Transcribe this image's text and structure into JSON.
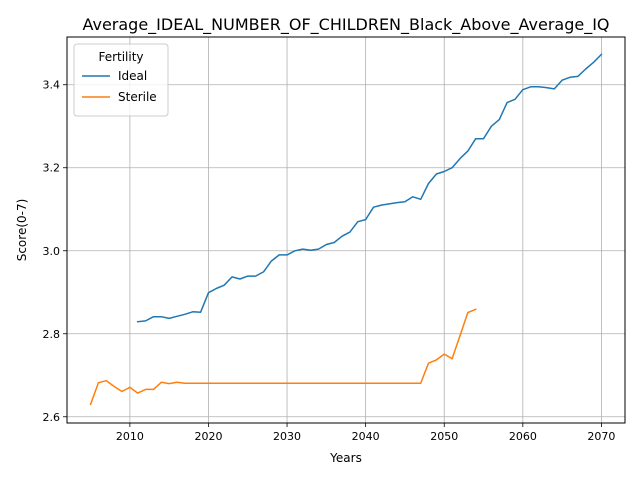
{
  "chart_data": {
    "type": "line",
    "title": "Average_IDEAL_NUMBER_OF_CHILDREN_Black_Above_Average_IQ",
    "xlabel": "Years",
    "ylabel": "Score(0-7)",
    "xlim": [
      2002,
      2073
    ],
    "ylim": [
      2.585,
      3.515
    ],
    "xticks": [
      2010,
      2020,
      2030,
      2040,
      2050,
      2060,
      2070
    ],
    "yticks": [
      2.6,
      2.8,
      3.0,
      3.2,
      3.4
    ],
    "grid": true,
    "legend": {
      "title": "Fertility",
      "placement": "upper left"
    },
    "series": [
      {
        "name": "Ideal",
        "color": "#1f77b4",
        "x": [
          2011,
          2012,
          2013,
          2014,
          2015,
          2016,
          2017,
          2018,
          2019,
          2020,
          2021,
          2022,
          2023,
          2024,
          2025,
          2026,
          2027,
          2028,
          2029,
          2030,
          2031,
          2032,
          2033,
          2034,
          2035,
          2036,
          2037,
          2038,
          2039,
          2040,
          2041,
          2042,
          2043,
          2044,
          2045,
          2046,
          2047,
          2048,
          2049,
          2050,
          2051,
          2052,
          2053,
          2054,
          2055,
          2056,
          2057,
          2058,
          2059,
          2060,
          2061,
          2062,
          2063,
          2064,
          2065,
          2066,
          2067,
          2068,
          2069,
          2070
        ],
        "y": [
          2.829,
          2.831,
          2.841,
          2.841,
          2.837,
          2.842,
          2.847,
          2.853,
          2.852,
          2.899,
          2.909,
          2.917,
          2.937,
          2.932,
          2.939,
          2.939,
          2.949,
          2.975,
          2.99,
          2.99,
          3.0,
          3.004,
          3.001,
          3.004,
          3.015,
          3.02,
          3.035,
          3.045,
          3.07,
          3.075,
          3.105,
          3.11,
          3.113,
          3.116,
          3.118,
          3.13,
          3.124,
          3.162,
          3.185,
          3.191,
          3.2,
          3.222,
          3.24,
          3.27,
          3.27,
          3.3,
          3.316,
          3.357,
          3.365,
          3.388,
          3.395,
          3.395,
          3.393,
          3.39,
          3.411,
          3.418,
          3.42,
          3.438,
          3.454,
          3.473
        ]
      },
      {
        "name": "Sterile",
        "color": "#ff7f0e",
        "x": [
          2005,
          2006,
          2007,
          2008,
          2009,
          2010,
          2011,
          2012,
          2013,
          2014,
          2015,
          2016,
          2017,
          2018,
          2019,
          2020,
          2021,
          2022,
          2023,
          2024,
          2025,
          2026,
          2027,
          2028,
          2029,
          2030,
          2031,
          2032,
          2033,
          2034,
          2035,
          2036,
          2037,
          2038,
          2039,
          2040,
          2041,
          2042,
          2043,
          2044,
          2045,
          2046,
          2047,
          2048,
          2049,
          2050,
          2051,
          2052,
          2053,
          2054
        ],
        "y": [
          2.63,
          2.682,
          2.687,
          2.673,
          2.661,
          2.671,
          2.657,
          2.666,
          2.666,
          2.683,
          2.68,
          2.683,
          2.681,
          2.681,
          2.681,
          2.681,
          2.681,
          2.681,
          2.681,
          2.681,
          2.681,
          2.681,
          2.681,
          2.681,
          2.681,
          2.681,
          2.681,
          2.681,
          2.681,
          2.681,
          2.681,
          2.681,
          2.681,
          2.681,
          2.681,
          2.681,
          2.681,
          2.681,
          2.681,
          2.681,
          2.681,
          2.681,
          2.681,
          2.729,
          2.737,
          2.751,
          2.74,
          2.795,
          2.851,
          2.859
        ]
      }
    ]
  }
}
